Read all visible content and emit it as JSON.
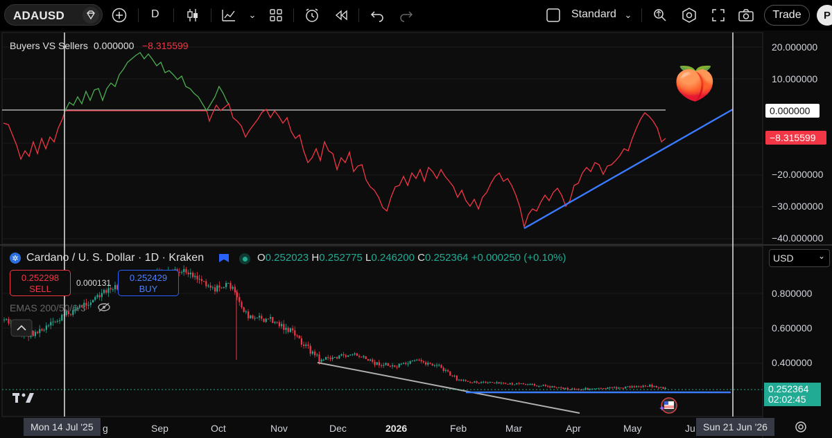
{
  "toolbar": {
    "symbol": "ADAUSD",
    "interval": "D",
    "layout_mode": "Standard",
    "trade_label": "Trade",
    "profile_initial": "P"
  },
  "indicator_pane": {
    "title": "Buyers VS Sellers",
    "value1": "0.000000",
    "value2": "−8.315599",
    "axis_labels": [
      "20.000000",
      "10.000000",
      "0.000000",
      "−8.315599",
      "−20.000000",
      "−30.000000",
      "−40.000000"
    ],
    "zero_tag": "0.000000",
    "current_tag": "−8.315599",
    "colors": {
      "up": "#4caf50",
      "down": "#f23645",
      "trendline": "#3a7bff"
    }
  },
  "price_pane": {
    "title": "Cardano / U. S. Dollar · 1D · Kraken",
    "ohlc": {
      "o_label": "O",
      "o": "0.252023",
      "h_label": "H",
      "h": "0.252775",
      "l_label": "L",
      "l": "0.246200",
      "c_label": "C",
      "c": "0.252364",
      "change": "+0.000250 (+0.10%)"
    },
    "sell_price": "0.252298",
    "sell_label": "SELL",
    "spread": "0.000131",
    "buy_price": "0.252429",
    "buy_label": "BUY",
    "emas_label": "EMAS 200/50/6/3",
    "currency": "USD",
    "axis_labels": [
      "0.800000",
      "0.600000",
      "0.400000"
    ],
    "last_price": "0.252364",
    "countdown": "02:02:45"
  },
  "time_axis": {
    "labels": [
      "g",
      "Sep",
      "Oct",
      "Nov",
      "Dec",
      "2026",
      "Feb",
      "Mar",
      "Apr",
      "May",
      "Ju"
    ],
    "crosshair_left": "Mon 14 Jul '25",
    "crosshair_right": "Sun 21 Jun '26"
  },
  "icons": {
    "logo": "tradingview-logo-icon",
    "settings": "gear-icon",
    "peach": "🍑"
  }
}
